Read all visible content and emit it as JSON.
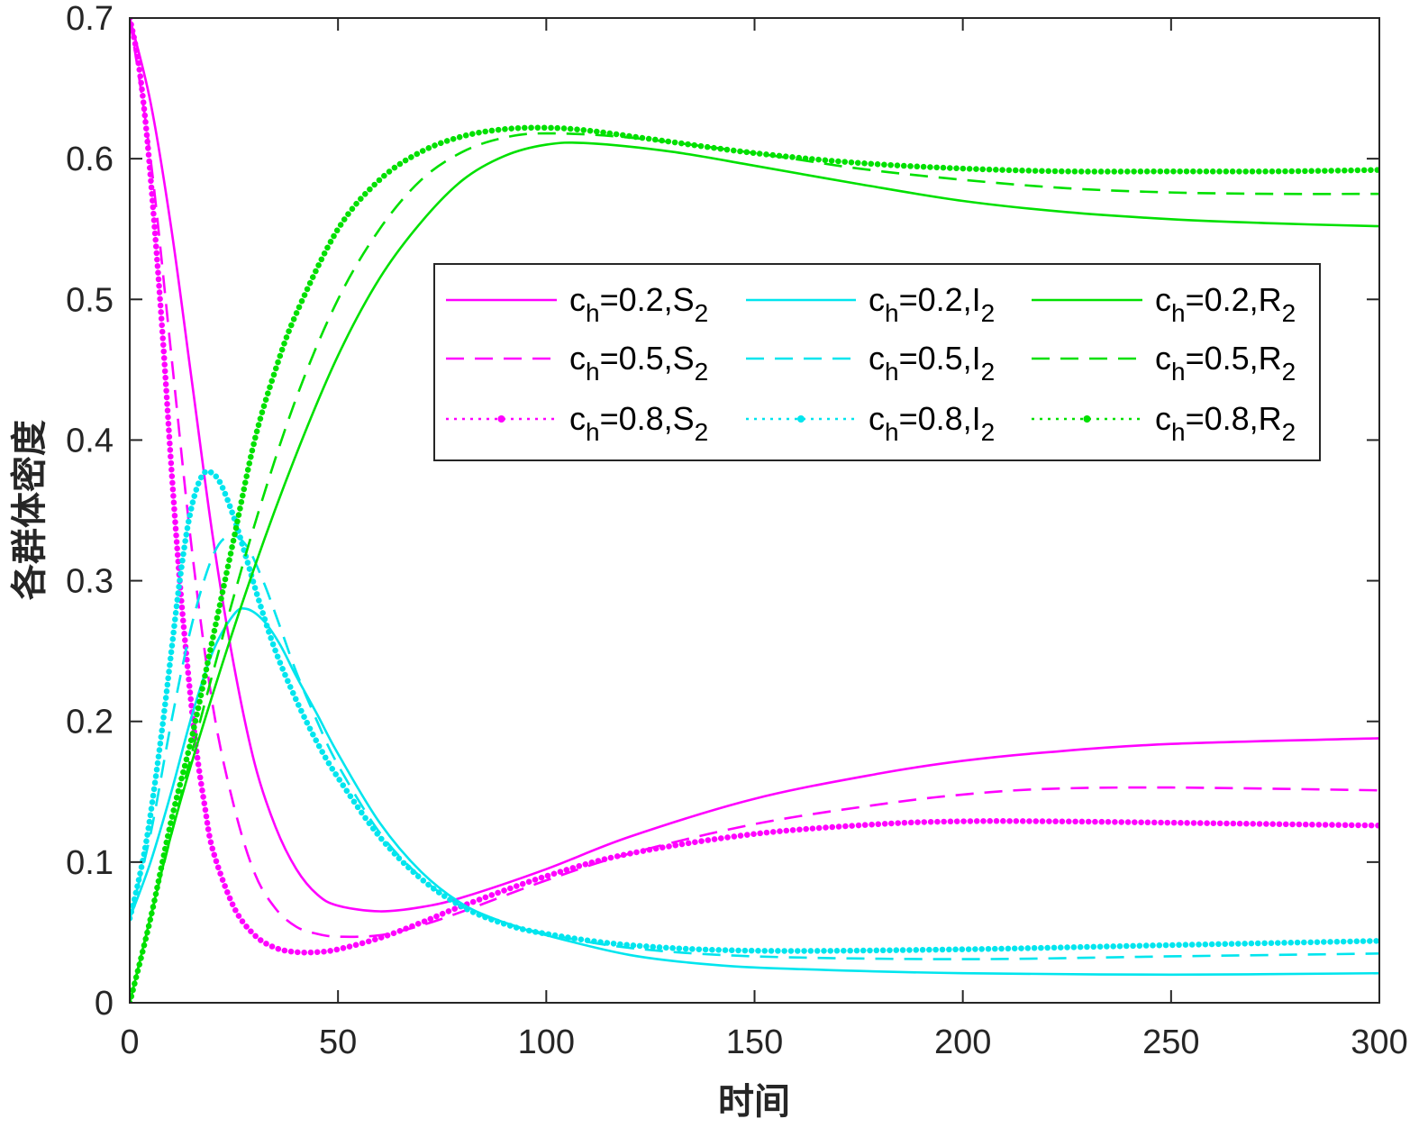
{
  "chart_data": {
    "type": "line",
    "xlabel": "时间",
    "ylabel": "各群体密度",
    "xlim": [
      0,
      300
    ],
    "ylim": [
      0,
      0.7
    ],
    "xticks": [
      "0",
      "50",
      "100",
      "150",
      "200",
      "250",
      "300"
    ],
    "yticks": [
      "0",
      "0.1",
      "0.2",
      "0.3",
      "0.4",
      "0.5",
      "0.6",
      "0.7"
    ],
    "grid": false,
    "legend_position": "upper-right, three columns",
    "colors": {
      "S": "#ff00ff",
      "I": "#00e5ee",
      "R": "#00e000"
    },
    "series": [
      {
        "name": "ch=0.2,S2",
        "legend": {
          "base": "c",
          "sub1": "h",
          "mid": "=0.2,S",
          "sub2": "2"
        },
        "color": "#ff00ff",
        "style": "solid",
        "points": [
          [
            0,
            0.7
          ],
          [
            5,
            0.64
          ],
          [
            10,
            0.55
          ],
          [
            15,
            0.44
          ],
          [
            20,
            0.33
          ],
          [
            25,
            0.24
          ],
          [
            30,
            0.17
          ],
          [
            35,
            0.125
          ],
          [
            40,
            0.095
          ],
          [
            45,
            0.077
          ],
          [
            50,
            0.069
          ],
          [
            60,
            0.065
          ],
          [
            70,
            0.068
          ],
          [
            80,
            0.075
          ],
          [
            100,
            0.095
          ],
          [
            120,
            0.118
          ],
          [
            150,
            0.145
          ],
          [
            180,
            0.163
          ],
          [
            200,
            0.172
          ],
          [
            220,
            0.178
          ],
          [
            250,
            0.184
          ],
          [
            300,
            0.188
          ]
        ]
      },
      {
        "name": "ch=0.5,S2",
        "legend": {
          "base": "c",
          "sub1": "h",
          "mid": "=0.5,S",
          "sub2": "2"
        },
        "color": "#ff00ff",
        "style": "dashed",
        "points": [
          [
            0,
            0.7
          ],
          [
            5,
            0.6
          ],
          [
            10,
            0.46
          ],
          [
            15,
            0.32
          ],
          [
            20,
            0.21
          ],
          [
            25,
            0.14
          ],
          [
            30,
            0.092
          ],
          [
            35,
            0.067
          ],
          [
            40,
            0.054
          ],
          [
            45,
            0.049
          ],
          [
            50,
            0.047
          ],
          [
            60,
            0.048
          ],
          [
            70,
            0.055
          ],
          [
            80,
            0.065
          ],
          [
            100,
            0.087
          ],
          [
            120,
            0.106
          ],
          [
            150,
            0.127
          ],
          [
            180,
            0.141
          ],
          [
            200,
            0.148
          ],
          [
            220,
            0.152
          ],
          [
            250,
            0.153
          ],
          [
            300,
            0.151
          ]
        ]
      },
      {
        "name": "ch=0.8,S2",
        "legend": {
          "base": "c",
          "sub1": "h",
          "mid": "=0.8,S",
          "sub2": "2"
        },
        "color": "#ff00ff",
        "style": "dotted",
        "points": [
          [
            0,
            0.7
          ],
          [
            2,
            0.67
          ],
          [
            4,
            0.62
          ],
          [
            6,
            0.55
          ],
          [
            8,
            0.47
          ],
          [
            10,
            0.38
          ],
          [
            12,
            0.3
          ],
          [
            14,
            0.235
          ],
          [
            16,
            0.18
          ],
          [
            18,
            0.14
          ],
          [
            20,
            0.108
          ],
          [
            25,
            0.068
          ],
          [
            30,
            0.048
          ],
          [
            35,
            0.039
          ],
          [
            40,
            0.036
          ],
          [
            45,
            0.036
          ],
          [
            50,
            0.038
          ],
          [
            60,
            0.046
          ],
          [
            70,
            0.057
          ],
          [
            80,
            0.069
          ],
          [
            100,
            0.09
          ],
          [
            120,
            0.106
          ],
          [
            150,
            0.12
          ],
          [
            180,
            0.127
          ],
          [
            200,
            0.129
          ],
          [
            220,
            0.129
          ],
          [
            250,
            0.128
          ],
          [
            300,
            0.126
          ]
        ]
      },
      {
        "name": "ch=0.2,I2",
        "legend": {
          "base": "c",
          "sub1": "h",
          "mid": "=0.2,I",
          "sub2": "2"
        },
        "color": "#00e5ee",
        "style": "solid",
        "points": [
          [
            0,
            0.06
          ],
          [
            5,
            0.1
          ],
          [
            10,
            0.15
          ],
          [
            15,
            0.205
          ],
          [
            20,
            0.25
          ],
          [
            25,
            0.276
          ],
          [
            28,
            0.28
          ],
          [
            32,
            0.272
          ],
          [
            36,
            0.255
          ],
          [
            40,
            0.232
          ],
          [
            45,
            0.205
          ],
          [
            50,
            0.177
          ],
          [
            60,
            0.128
          ],
          [
            70,
            0.093
          ],
          [
            80,
            0.07
          ],
          [
            90,
            0.057
          ],
          [
            100,
            0.048
          ],
          [
            120,
            0.034
          ],
          [
            140,
            0.027
          ],
          [
            160,
            0.024
          ],
          [
            200,
            0.021
          ],
          [
            250,
            0.02
          ],
          [
            300,
            0.021
          ]
        ]
      },
      {
        "name": "ch=0.5,I2",
        "legend": {
          "base": "c",
          "sub1": "h",
          "mid": "=0.5,I",
          "sub2": "2"
        },
        "color": "#00e5ee",
        "style": "dashed",
        "points": [
          [
            0,
            0.06
          ],
          [
            5,
            0.12
          ],
          [
            10,
            0.2
          ],
          [
            15,
            0.27
          ],
          [
            20,
            0.318
          ],
          [
            24,
            0.332
          ],
          [
            28,
            0.325
          ],
          [
            32,
            0.3
          ],
          [
            36,
            0.268
          ],
          [
            40,
            0.235
          ],
          [
            45,
            0.2
          ],
          [
            50,
            0.169
          ],
          [
            60,
            0.121
          ],
          [
            70,
            0.089
          ],
          [
            80,
            0.068
          ],
          [
            90,
            0.057
          ],
          [
            100,
            0.049
          ],
          [
            120,
            0.039
          ],
          [
            150,
            0.033
          ],
          [
            200,
            0.031
          ],
          [
            250,
            0.033
          ],
          [
            300,
            0.035
          ]
        ]
      },
      {
        "name": "ch=0.8,I2",
        "legend": {
          "base": "c",
          "sub1": "h",
          "mid": "=0.8,I",
          "sub2": "2"
        },
        "color": "#00e5ee",
        "style": "dotted",
        "points": [
          [
            0,
            0.06
          ],
          [
            2,
            0.085
          ],
          [
            4,
            0.115
          ],
          [
            6,
            0.155
          ],
          [
            8,
            0.2
          ],
          [
            10,
            0.25
          ],
          [
            12,
            0.3
          ],
          [
            14,
            0.34
          ],
          [
            16,
            0.365
          ],
          [
            18,
            0.377
          ],
          [
            20,
            0.376
          ],
          [
            22,
            0.368
          ],
          [
            25,
            0.345
          ],
          [
            28,
            0.316
          ],
          [
            31,
            0.286
          ],
          [
            35,
            0.25
          ],
          [
            40,
            0.215
          ],
          [
            45,
            0.185
          ],
          [
            50,
            0.16
          ],
          [
            60,
            0.118
          ],
          [
            70,
            0.088
          ],
          [
            80,
            0.068
          ],
          [
            90,
            0.056
          ],
          [
            100,
            0.049
          ],
          [
            120,
            0.041
          ],
          [
            150,
            0.037
          ],
          [
            200,
            0.038
          ],
          [
            250,
            0.041
          ],
          [
            300,
            0.044
          ]
        ]
      },
      {
        "name": "ch=0.2,R2",
        "legend": {
          "base": "c",
          "sub1": "h",
          "mid": "=0.2,R",
          "sub2": "2"
        },
        "color": "#00e000",
        "style": "solid",
        "points": [
          [
            0,
            0
          ],
          [
            10,
            0.12
          ],
          [
            20,
            0.22
          ],
          [
            30,
            0.31
          ],
          [
            40,
            0.39
          ],
          [
            50,
            0.46
          ],
          [
            60,
            0.515
          ],
          [
            70,
            0.555
          ],
          [
            80,
            0.585
          ],
          [
            90,
            0.602
          ],
          [
            100,
            0.61
          ],
          [
            110,
            0.611
          ],
          [
            130,
            0.605
          ],
          [
            150,
            0.595
          ],
          [
            175,
            0.582
          ],
          [
            200,
            0.57
          ],
          [
            225,
            0.562
          ],
          [
            250,
            0.557
          ],
          [
            275,
            0.554
          ],
          [
            300,
            0.552
          ]
        ]
      },
      {
        "name": "ch=0.5,R2",
        "legend": {
          "base": "c",
          "sub1": "h",
          "mid": "=0.5,R",
          "sub2": "2"
        },
        "color": "#00e000",
        "style": "dashed",
        "points": [
          [
            0,
            0
          ],
          [
            10,
            0.12
          ],
          [
            20,
            0.235
          ],
          [
            30,
            0.34
          ],
          [
            40,
            0.43
          ],
          [
            50,
            0.5
          ],
          [
            60,
            0.55
          ],
          [
            70,
            0.585
          ],
          [
            80,
            0.605
          ],
          [
            90,
            0.615
          ],
          [
            100,
            0.618
          ],
          [
            120,
            0.615
          ],
          [
            150,
            0.604
          ],
          [
            175,
            0.593
          ],
          [
            200,
            0.585
          ],
          [
            225,
            0.579
          ],
          [
            250,
            0.576
          ],
          [
            275,
            0.575
          ],
          [
            300,
            0.575
          ]
        ]
      },
      {
        "name": "ch=0.8,R2",
        "legend": {
          "base": "c",
          "sub1": "h",
          "mid": "=0.8,R",
          "sub2": "2"
        },
        "color": "#00e000",
        "style": "dotted",
        "points": [
          [
            0,
            0
          ],
          [
            5,
            0.06
          ],
          [
            10,
            0.13
          ],
          [
            15,
            0.19
          ],
          [
            20,
            0.26
          ],
          [
            25,
            0.33
          ],
          [
            30,
            0.4
          ],
          [
            35,
            0.45
          ],
          [
            40,
            0.49
          ],
          [
            50,
            0.55
          ],
          [
            60,
            0.585
          ],
          [
            70,
            0.605
          ],
          [
            80,
            0.616
          ],
          [
            90,
            0.621
          ],
          [
            100,
            0.622
          ],
          [
            110,
            0.62
          ],
          [
            125,
            0.614
          ],
          [
            150,
            0.604
          ],
          [
            175,
            0.597
          ],
          [
            200,
            0.593
          ],
          [
            225,
            0.591
          ],
          [
            250,
            0.591
          ],
          [
            275,
            0.591
          ],
          [
            300,
            0.592
          ]
        ]
      }
    ]
  }
}
